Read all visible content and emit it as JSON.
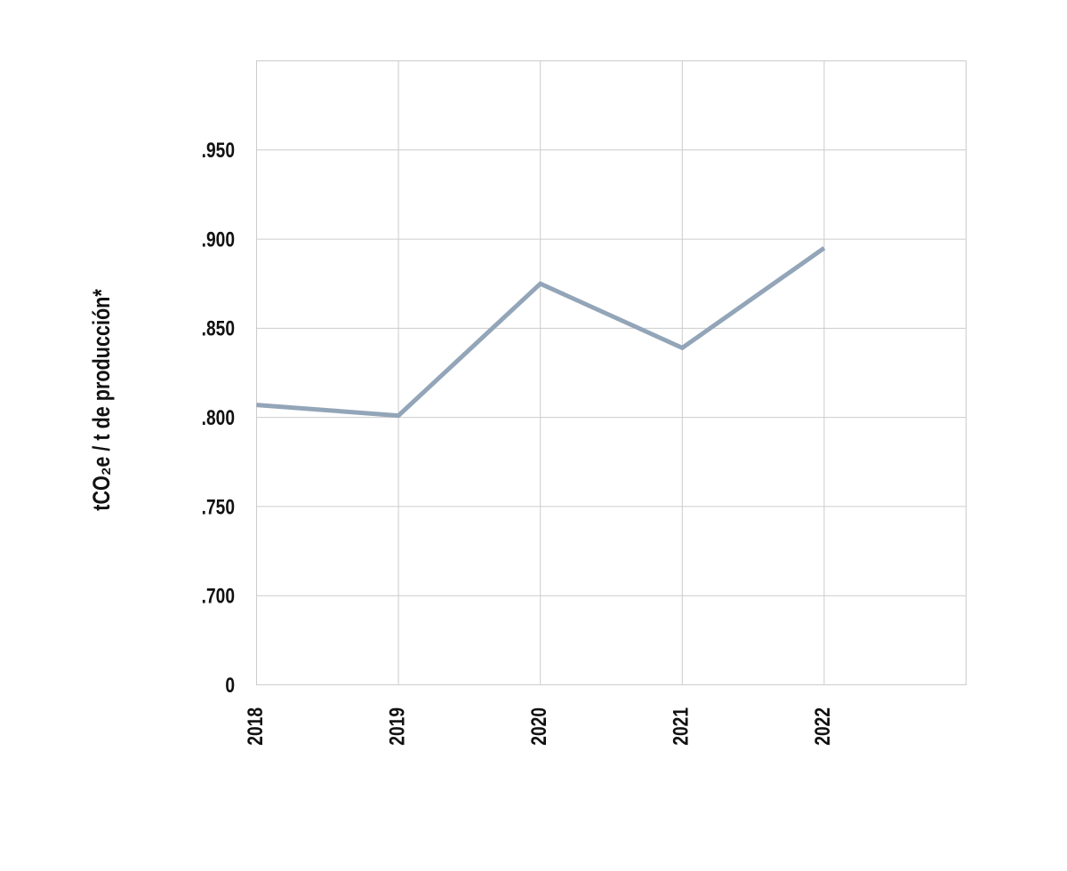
{
  "chart_data": {
    "type": "line",
    "y_label": "tCO₂e / t de producción*",
    "x": [
      2018,
      2019,
      2020,
      2021,
      2022
    ],
    "series": [
      {
        "color": "#93a5b8",
        "values": [
          0.807,
          0.801,
          0.875,
          0.839,
          0.895
        ]
      }
    ],
    "xlim": [
      2018,
      2023
    ],
    "xticks": [
      2018,
      2019,
      2020,
      2021,
      2022
    ],
    "ylim": [
      0.65,
      1.0
    ],
    "yticks": [
      {
        "value": 0.65,
        "label": "0"
      },
      {
        "value": 0.7,
        "label": ".700"
      },
      {
        "value": 0.75,
        "label": ".750"
      },
      {
        "value": 0.8,
        "label": ".800"
      },
      {
        "value": 0.85,
        "label": ".850"
      },
      {
        "value": 0.9,
        "label": ".900"
      },
      {
        "value": 0.95,
        "label": ".950"
      }
    ],
    "grid": true
  }
}
